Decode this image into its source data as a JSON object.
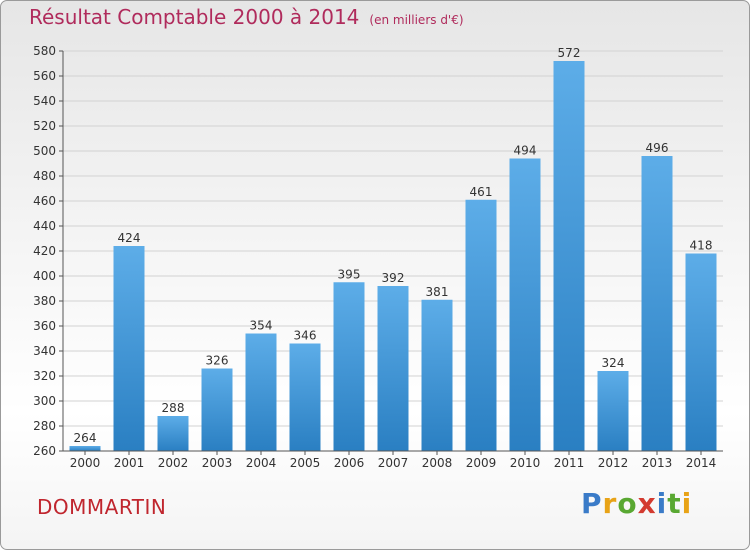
{
  "title": "Résultat Comptable 2000 à 2014",
  "unit": "(en milliers d'€)",
  "commune": "DOMMARTIN",
  "logo": [
    "P",
    "r",
    "o",
    "x",
    "i",
    "t",
    "i"
  ],
  "colors": {
    "bar_top": "#5dade8",
    "bar_bottom": "#2a7fc2",
    "title": "#b02b5c",
    "commune": "#c0262e"
  },
  "chart_data": {
    "type": "bar",
    "categories": [
      "2000",
      "2001",
      "2002",
      "2003",
      "2004",
      "2005",
      "2006",
      "2007",
      "2008",
      "2009",
      "2010",
      "2011",
      "2012",
      "2013",
      "2014"
    ],
    "values": [
      264,
      424,
      288,
      326,
      354,
      346,
      395,
      392,
      381,
      461,
      494,
      572,
      324,
      496,
      418
    ],
    "data_labels": [
      "264",
      "424",
      "288",
      "326",
      "354",
      "346",
      "395",
      "392",
      "381",
      "461",
      "494",
      "572",
      "324",
      "496",
      "418"
    ],
    "ylim": [
      260,
      580
    ],
    "yticks": [
      "260",
      "280",
      "300",
      "320",
      "340",
      "360",
      "380",
      "400",
      "420",
      "440",
      "460",
      "480",
      "500",
      "520",
      "540",
      "560",
      "580"
    ],
    "grid": true,
    "legend": "none"
  }
}
